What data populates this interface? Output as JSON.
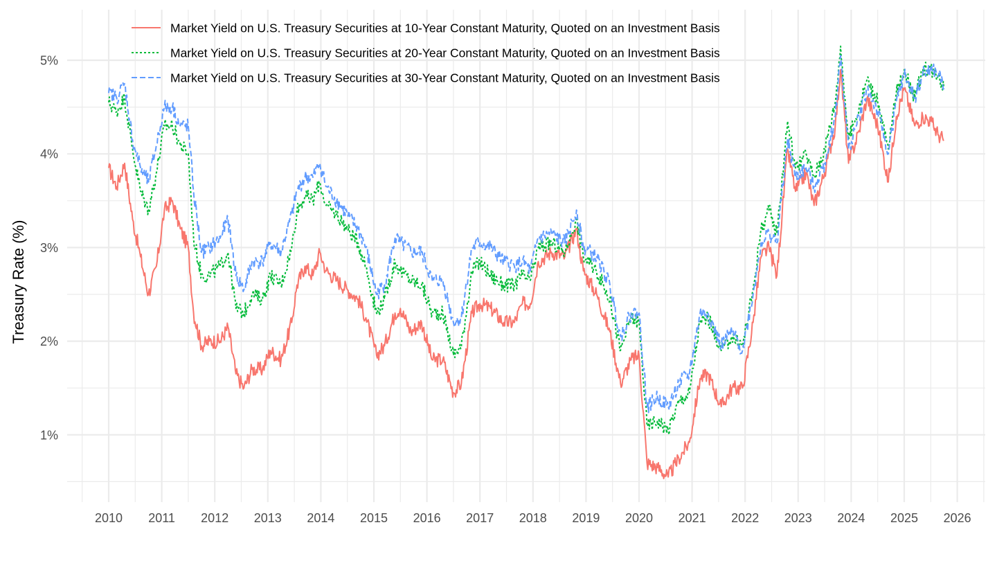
{
  "chart_data": {
    "type": "line",
    "title": "",
    "xlabel": "",
    "ylabel": "Treasury Rate (%)",
    "xlim": [
      2009.5,
      2026.5
    ],
    "ylim": [
      0.3,
      5.5
    ],
    "x_ticks": [
      2010,
      2011,
      2012,
      2013,
      2014,
      2015,
      2016,
      2017,
      2018,
      2019,
      2020,
      2021,
      2022,
      2023,
      2024,
      2025,
      2026
    ],
    "x_tick_labels": [
      "2010",
      "2011",
      "2012",
      "2013",
      "2014",
      "2015",
      "2016",
      "2017",
      "2018",
      "2019",
      "2020",
      "2021",
      "2022",
      "2023",
      "2024",
      "2025",
      "2026"
    ],
    "y_ticks": [
      1,
      2,
      3,
      4,
      5
    ],
    "y_tick_labels": [
      "1%",
      "2%",
      "3%",
      "4%",
      "5%"
    ],
    "y_minor_ticks": [
      0.5,
      1.5,
      2.5,
      3.5,
      4.5
    ],
    "grid": true,
    "legend_position": "top",
    "x": [
      2010.0,
      2010.15,
      2010.3,
      2010.45,
      2010.6,
      2010.75,
      2010.9,
      2011.05,
      2011.2,
      2011.35,
      2011.5,
      2011.6,
      2011.75,
      2011.9,
      2012.1,
      2012.25,
      2012.4,
      2012.55,
      2012.7,
      2012.9,
      2013.05,
      2013.25,
      2013.45,
      2013.55,
      2013.7,
      2013.85,
      2013.98,
      2014.1,
      2014.3,
      2014.5,
      2014.7,
      2014.85,
      2015.05,
      2015.2,
      2015.4,
      2015.5,
      2015.7,
      2015.9,
      2016.1,
      2016.3,
      2016.5,
      2016.65,
      2016.85,
      2017.0,
      2017.2,
      2017.45,
      2017.65,
      2017.8,
      2017.95,
      2018.1,
      2018.35,
      2018.6,
      2018.82,
      2018.95,
      2019.2,
      2019.45,
      2019.65,
      2019.85,
      2020.0,
      2020.15,
      2020.35,
      2020.55,
      2020.75,
      2020.95,
      2021.15,
      2021.3,
      2021.55,
      2021.75,
      2021.95,
      2022.15,
      2022.3,
      2022.45,
      2022.6,
      2022.8,
      2022.95,
      2023.15,
      2023.3,
      2023.5,
      2023.7,
      2023.8,
      2023.95,
      2024.15,
      2024.3,
      2024.5,
      2024.7,
      2024.85,
      2025.0,
      2025.2,
      2025.35,
      2025.5,
      2025.65,
      2025.75
    ],
    "series": [
      {
        "name": "Market Yield on U.S. Treasury Securities at 10-Year Constant Maturity, Quoted on an Investment Basis",
        "color": "#F8766D",
        "dash": "solid",
        "values": [
          3.85,
          3.65,
          3.9,
          3.3,
          2.9,
          2.5,
          2.8,
          3.4,
          3.5,
          3.2,
          3.0,
          2.3,
          1.95,
          2.0,
          2.0,
          2.15,
          1.65,
          1.5,
          1.7,
          1.7,
          1.9,
          1.8,
          2.2,
          2.6,
          2.8,
          2.7,
          2.95,
          2.75,
          2.65,
          2.55,
          2.45,
          2.25,
          1.85,
          1.95,
          2.3,
          2.35,
          2.1,
          2.2,
          1.8,
          1.8,
          1.45,
          1.55,
          2.3,
          2.4,
          2.35,
          2.2,
          2.2,
          2.4,
          2.4,
          2.85,
          2.95,
          2.9,
          3.2,
          2.75,
          2.5,
          2.1,
          1.55,
          1.8,
          1.85,
          0.7,
          0.65,
          0.55,
          0.75,
          0.92,
          1.6,
          1.65,
          1.3,
          1.5,
          1.5,
          2.2,
          2.9,
          3.0,
          2.7,
          4.05,
          3.6,
          3.8,
          3.45,
          3.8,
          4.3,
          4.9,
          3.9,
          4.25,
          4.6,
          4.3,
          3.7,
          4.4,
          4.7,
          4.3,
          4.4,
          4.35,
          4.2,
          4.15
        ]
      },
      {
        "name": "Market Yield on U.S. Treasury Securities at 20-Year Constant Maturity, Quoted on an Investment Basis",
        "color": "#00BA38",
        "dash": "dotted",
        "values": [
          4.55,
          4.45,
          4.6,
          4.05,
          3.6,
          3.4,
          3.8,
          4.3,
          4.3,
          4.1,
          4.0,
          3.1,
          2.7,
          2.7,
          2.8,
          2.95,
          2.35,
          2.3,
          2.5,
          2.45,
          2.7,
          2.6,
          3.0,
          3.4,
          3.55,
          3.5,
          3.7,
          3.45,
          3.35,
          3.2,
          3.05,
          2.8,
          2.3,
          2.45,
          2.85,
          2.75,
          2.65,
          2.6,
          2.3,
          2.3,
          1.85,
          1.95,
          2.75,
          2.85,
          2.7,
          2.6,
          2.6,
          2.7,
          2.65,
          3.0,
          3.05,
          2.95,
          3.3,
          2.9,
          2.75,
          2.45,
          1.9,
          2.25,
          2.2,
          1.1,
          1.15,
          1.05,
          1.35,
          1.45,
          2.2,
          2.25,
          1.9,
          2.05,
          1.95,
          2.55,
          3.2,
          3.4,
          3.15,
          4.35,
          3.85,
          4.0,
          3.75,
          4.05,
          4.55,
          5.15,
          4.15,
          4.5,
          4.8,
          4.55,
          4.05,
          4.65,
          4.9,
          4.6,
          4.9,
          4.9,
          4.85,
          4.7
        ]
      },
      {
        "name": "Market Yield on U.S. Treasury Securities at 30-Year Constant Maturity, Quoted on an Investment Basis",
        "color": "#619CFF",
        "dash": "dashed",
        "values": [
          4.65,
          4.6,
          4.75,
          4.15,
          3.85,
          3.7,
          4.1,
          4.5,
          4.5,
          4.3,
          4.3,
          3.6,
          2.95,
          3.0,
          3.1,
          3.3,
          2.7,
          2.55,
          2.85,
          2.85,
          3.05,
          2.95,
          3.35,
          3.6,
          3.75,
          3.75,
          3.9,
          3.65,
          3.5,
          3.35,
          3.2,
          3.0,
          2.5,
          2.6,
          3.1,
          3.05,
          2.95,
          2.95,
          2.65,
          2.65,
          2.2,
          2.25,
          3.0,
          3.05,
          3.0,
          2.85,
          2.8,
          2.85,
          2.75,
          3.1,
          3.15,
          3.05,
          3.4,
          3.0,
          2.9,
          2.6,
          2.05,
          2.3,
          2.3,
          1.3,
          1.4,
          1.3,
          1.55,
          1.65,
          2.3,
          2.3,
          1.95,
          2.1,
          1.9,
          2.5,
          3.05,
          3.15,
          3.05,
          4.15,
          3.75,
          3.85,
          3.65,
          3.9,
          4.4,
          5.05,
          4.05,
          4.4,
          4.7,
          4.45,
          4.0,
          4.55,
          4.85,
          4.6,
          4.85,
          4.9,
          4.85,
          4.7
        ]
      }
    ]
  }
}
